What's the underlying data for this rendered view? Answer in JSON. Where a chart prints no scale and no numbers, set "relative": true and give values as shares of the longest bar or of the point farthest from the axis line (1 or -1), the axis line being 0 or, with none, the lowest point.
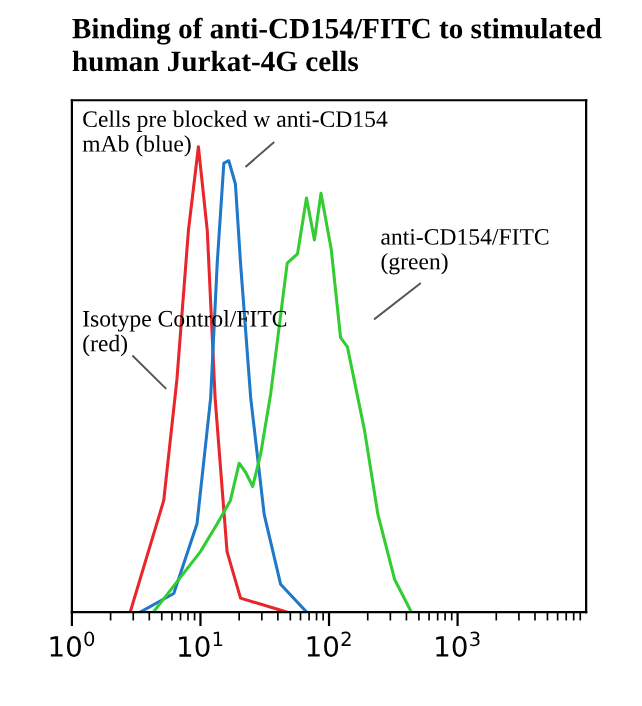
{
  "chart_data": {
    "type": "line",
    "title": "Binding of anti-CD154/FITC to stimulated\nhuman Jurkat-4G cells",
    "relative": true,
    "log": "x",
    "xlim": [
      1,
      10000
    ],
    "xticks": [
      {
        "value": 1,
        "label": "10$^{0}$"
      },
      {
        "value": 10,
        "label": "10$^{1}$"
      },
      {
        "value": 100,
        "label": "10$^{2}$"
      },
      {
        "value": 1000,
        "label": "10$^{3}$"
      }
    ],
    "tick_labels": "x",
    "grid": false,
    "legend": false,
    "marker": "none",
    "line_style": "solid",
    "series": [
      {
        "color": "#e8262b",
        "x": [
          2.84,
          5.18,
          6.56,
          8.06,
          9.64,
          11.3,
          13.0,
          16.1,
          20.5,
          47
        ],
        "values": [
          0,
          0.24,
          0.5,
          0.82,
          1.0,
          0.82,
          0.46,
          0.13,
          0.03,
          0
        ]
      },
      {
        "color": "#1f78c8",
        "x": [
          3.4,
          6.2,
          9.4,
          12.0,
          13.5,
          15.2,
          16.6,
          18.7,
          20.5,
          24.6,
          31.3,
          42,
          67
        ],
        "values": [
          0,
          0.04,
          0.19,
          0.46,
          0.75,
          0.965,
          0.97,
          0.92,
          0.75,
          0.46,
          0.21,
          0.06,
          0
        ]
      },
      {
        "color": "#33cc33",
        "x": [
          4.3,
          10,
          13.5,
          17.1,
          20,
          22.5,
          25.5,
          29.4,
          35.2,
          47.3,
          56.9,
          66.8,
          77,
          86.6,
          104,
          123,
          139,
          189,
          240,
          324,
          437
        ],
        "values": [
          0,
          0.13,
          0.19,
          0.24,
          0.32,
          0.3,
          0.27,
          0.34,
          0.47,
          0.75,
          0.77,
          0.89,
          0.8,
          0.9,
          0.78,
          0.59,
          0.57,
          0.39,
          0.21,
          0.07,
          0
        ]
      }
    ],
    "annotations": [
      "Cells pre blocked w anti-CD154\nmAb (blue)",
      "Isotype Control/FITC\n(red)",
      "anti-CD154/FITC\n(green)"
    ]
  }
}
